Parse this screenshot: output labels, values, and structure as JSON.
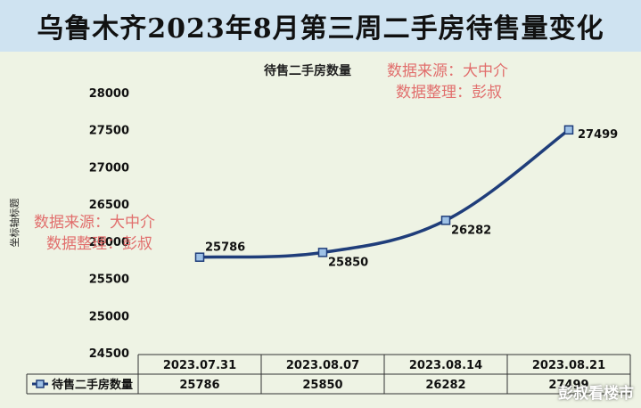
{
  "title": "乌鲁木齐2023年8月第三周二手房待售量变化",
  "watermark": {
    "line1": "数据来源：大中介",
    "line2": "数据整理：彭叔"
  },
  "brand": "彭叔看楼市",
  "colors": {
    "line": "#1f3d7a",
    "title_bg": "#cfe3f1",
    "panel_bg": "#eef3e4",
    "watermark": "#e06060"
  },
  "chart_data": {
    "type": "line",
    "title": "待售二手房数量",
    "ylabel": "坐标轴标题",
    "xlabel": "",
    "ylim": [
      24500,
      28000
    ],
    "yticks": [
      "24500",
      "25000",
      "25500",
      "26000",
      "26500",
      "27000",
      "27500",
      "28000"
    ],
    "categories": [
      "2023.07.31",
      "2023.08.07",
      "2023.08.14",
      "2023.08.21"
    ],
    "series": [
      {
        "name": "待售二手房数量",
        "values": [
          25786,
          25850,
          26282,
          27499
        ],
        "labels": [
          "25786",
          "25850",
          "26282",
          "27499"
        ]
      }
    ],
    "grid": false,
    "legend": "in data table"
  }
}
